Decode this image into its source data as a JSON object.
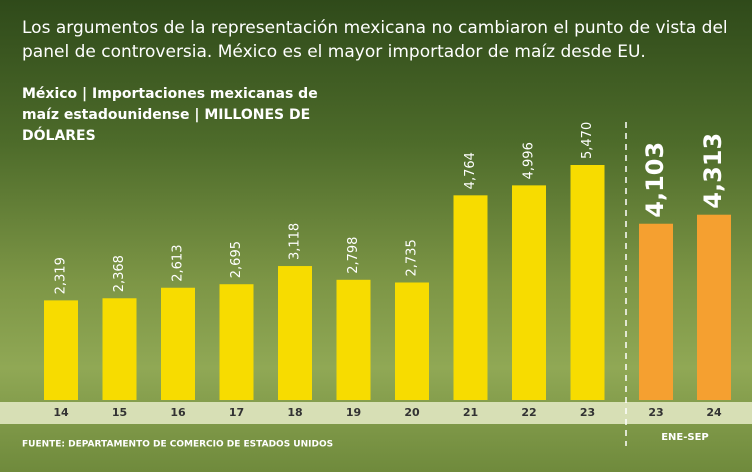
{
  "chart_data": {
    "type": "bar",
    "title": "Los argumentos de la representación mexicana no cambiaron el punto de vista del panel de controversia. México es el mayor importador de maíz desde EU.",
    "subtitle": "México | Importaciones mexicanas de maíz estadounidense | MILLONES DE DÓLARES",
    "categories": [
      "14",
      "15",
      "16",
      "17",
      "18",
      "19",
      "20",
      "21",
      "22",
      "23",
      "23",
      "24"
    ],
    "values": [
      2319,
      2368,
      2613,
      2695,
      3118,
      2798,
      2735,
      4764,
      4996,
      5470,
      4103,
      4313
    ],
    "value_labels": [
      "2,319",
      "2,368",
      "2,613",
      "2,695",
      "3,118",
      "2,798",
      "2,735",
      "4,764",
      "4,996",
      "5,470",
      "4,103",
      "4,313"
    ],
    "colors": [
      "#f7dc00",
      "#f7dc00",
      "#f7dc00",
      "#f7dc00",
      "#f7dc00",
      "#f7dc00",
      "#f7dc00",
      "#f7dc00",
      "#f7dc00",
      "#f7dc00",
      "#f5a030",
      "#f5a030"
    ],
    "annotation": "ENE-SEP",
    "source": "FUENTE: DEPARTAMENTO DE COMERCIO DE ESTADOS UNIDOS"
  }
}
